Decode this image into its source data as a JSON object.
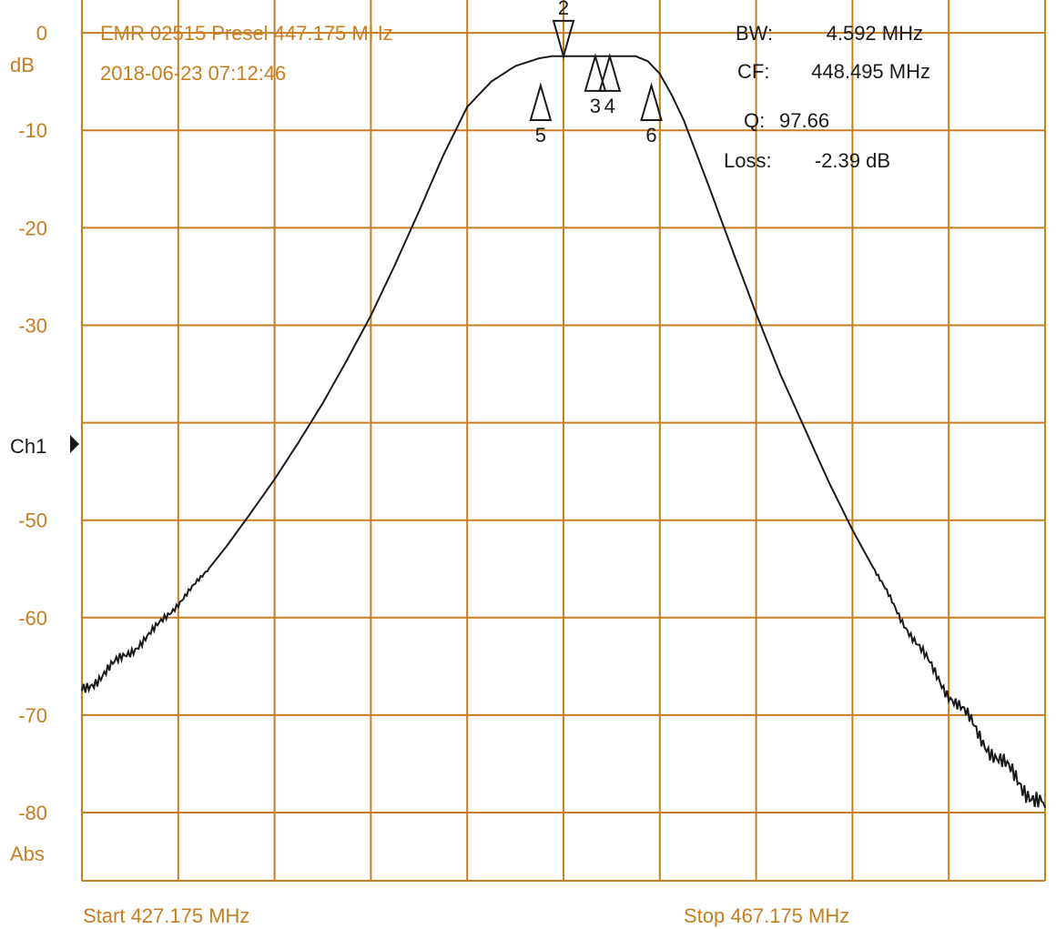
{
  "header": {
    "title": "EMR 02515 Presel 447.175 MHz",
    "timestamp": "2018-06-23 07:12:46"
  },
  "readout": {
    "bw_label": "BW:",
    "bw_value": "4.592 MHz",
    "cf_label": "CF:",
    "cf_value": "448.495 MHz",
    "q_label": "Q:",
    "q_value": "97.66",
    "loss_label": "Loss:",
    "loss_value": "-2.39 dB"
  },
  "axis": {
    "unit_label": "dB",
    "mode_label": "Abs",
    "channel_label": "Ch1",
    "start_label": "Start 427.175 MHz",
    "stop_label": "Stop 467.175 MHz"
  },
  "colors": {
    "grid": "#c77d21",
    "trace": "#1a1a1a",
    "background": "#ffffff"
  },
  "chart_data": {
    "type": "line",
    "xlim": [
      427.175,
      467.175
    ],
    "ylim": [
      -87,
      3
    ],
    "x_unit": "MHz",
    "y_unit": "dB",
    "yticks": [
      0,
      -10,
      -20,
      -30,
      -40,
      -50,
      -60,
      -70,
      -80
    ],
    "ytick_labels": [
      "0",
      "-10",
      "-20",
      "-30",
      "",
      "-50",
      "-60",
      "-70",
      "-80"
    ],
    "x_divisions": 10,
    "grid": true,
    "series": [
      {
        "x": [
          427.175,
          428.175,
          429.175,
          430.175,
          431.175,
          432.175,
          433.175,
          434.175,
          435.175,
          436.175,
          437.175,
          438.175,
          439.175,
          440.175,
          441.175,
          442.175,
          443.175,
          444.175,
          445.175,
          446.175,
          446.675,
          447.175,
          447.675,
          448.175,
          448.675,
          449.175,
          449.675,
          450.175,
          450.675,
          451.175,
          451.675,
          452.175,
          453.175,
          454.175,
          455.175,
          456.175,
          457.175,
          458.175,
          459.175,
          460.175,
          461.175,
          462.175,
          463.175,
          464.175,
          465.175,
          466.175,
          467.175
        ],
        "y": [
          -67.5,
          -65.5,
          -63.5,
          -61.3,
          -58.5,
          -55.8,
          -52.7,
          -49.3,
          -45.8,
          -42.0,
          -38.0,
          -33.6,
          -29.0,
          -23.8,
          -18.3,
          -12.6,
          -7.6,
          -5.0,
          -3.4,
          -2.6,
          -2.4,
          -2.4,
          -2.4,
          -2.4,
          -2.4,
          -2.4,
          -2.4,
          -2.4,
          -2.9,
          -4.2,
          -6.4,
          -9.0,
          -15.5,
          -22.2,
          -28.8,
          -35.0,
          -40.5,
          -46.0,
          -51.0,
          -55.5,
          -60.0,
          -64.0,
          -67.8,
          -71.0,
          -74.5,
          -77.0,
          -79.5
        ]
      }
    ],
    "markers": [
      {
        "label": "2",
        "x": 447.175,
        "y": -2.4,
        "direction": "down"
      },
      {
        "label": "3",
        "x": 448.495,
        "y": -2.4,
        "direction": "up"
      },
      {
        "label": "4",
        "x": 449.095,
        "y": -2.4,
        "direction": "up"
      },
      {
        "label": "5",
        "x": 446.225,
        "y": -5.4,
        "direction": "up"
      },
      {
        "label": "6",
        "x": 450.825,
        "y": -5.4,
        "direction": "up"
      }
    ]
  }
}
